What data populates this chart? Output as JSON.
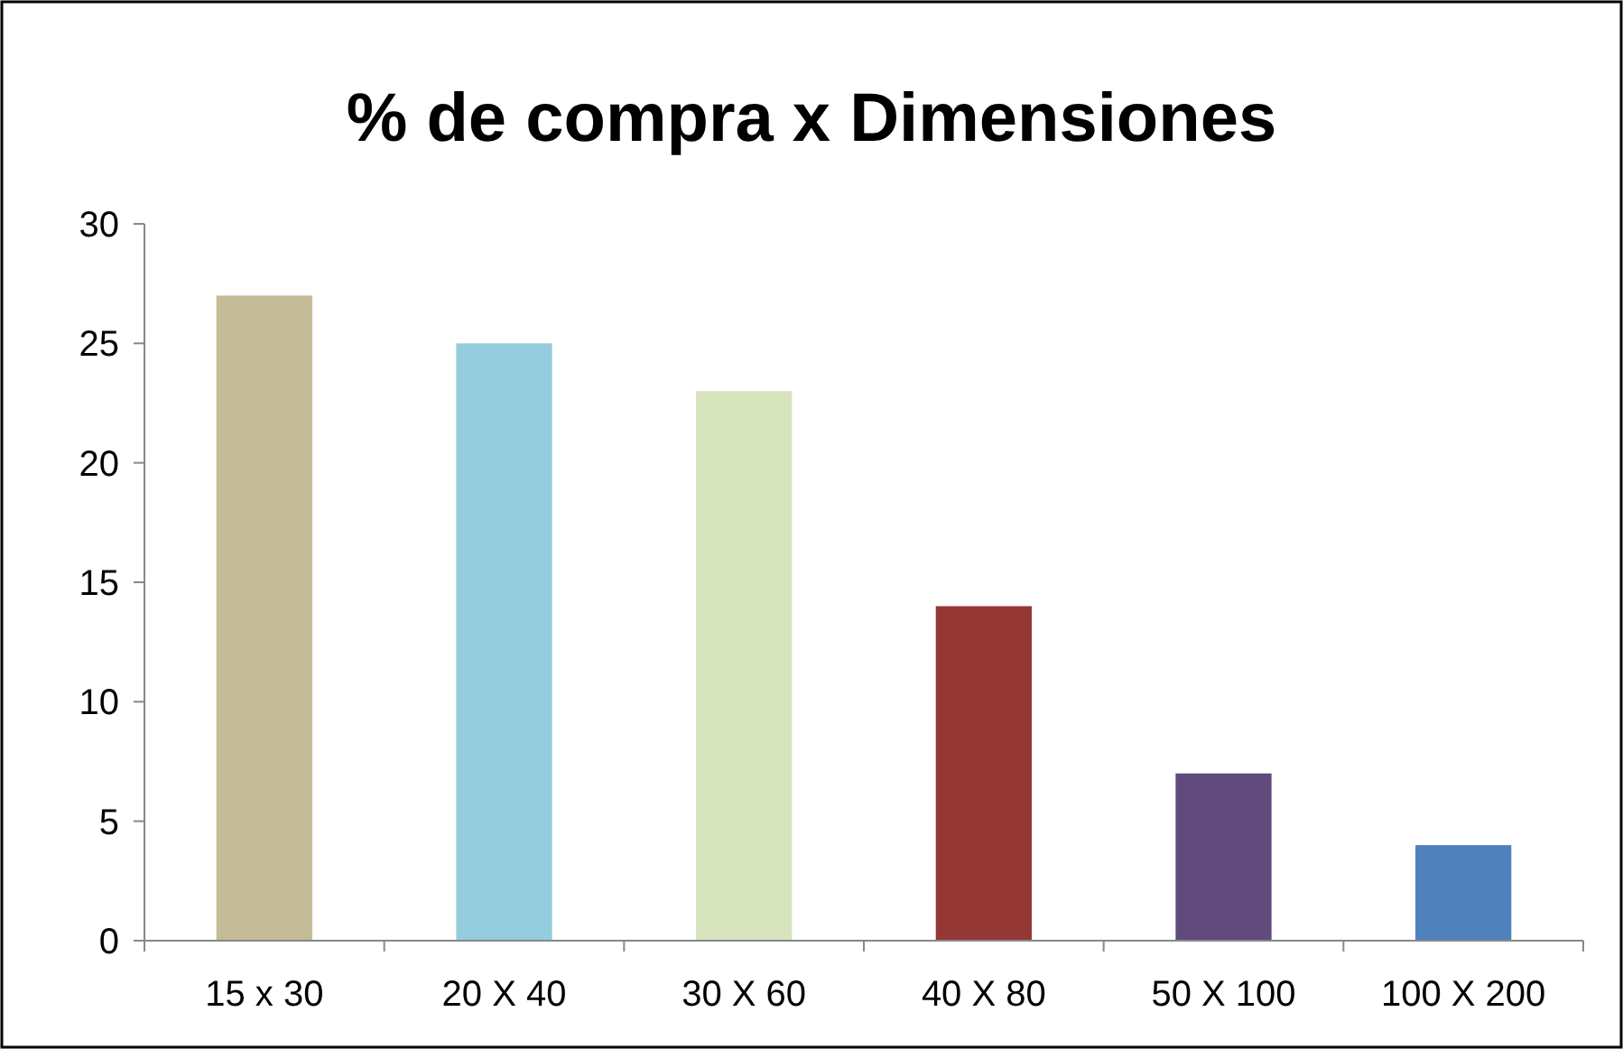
{
  "chart_data": {
    "type": "bar",
    "title": "% de compra x Dimensiones",
    "categories": [
      "15 x 30",
      "20 X 40",
      "30 X 60",
      "40 X 80",
      "50 X 100",
      "100 X 200"
    ],
    "values": [
      27,
      25,
      23,
      14,
      7,
      4
    ],
    "colors": [
      "#c4bc96",
      "#93cddd",
      "#d7e4bd",
      "#953735",
      "#604a7b",
      "#4f81bd"
    ],
    "ylim": [
      0,
      30
    ],
    "yticks": [
      0,
      5,
      10,
      15,
      20,
      25,
      30
    ],
    "grid": false
  }
}
